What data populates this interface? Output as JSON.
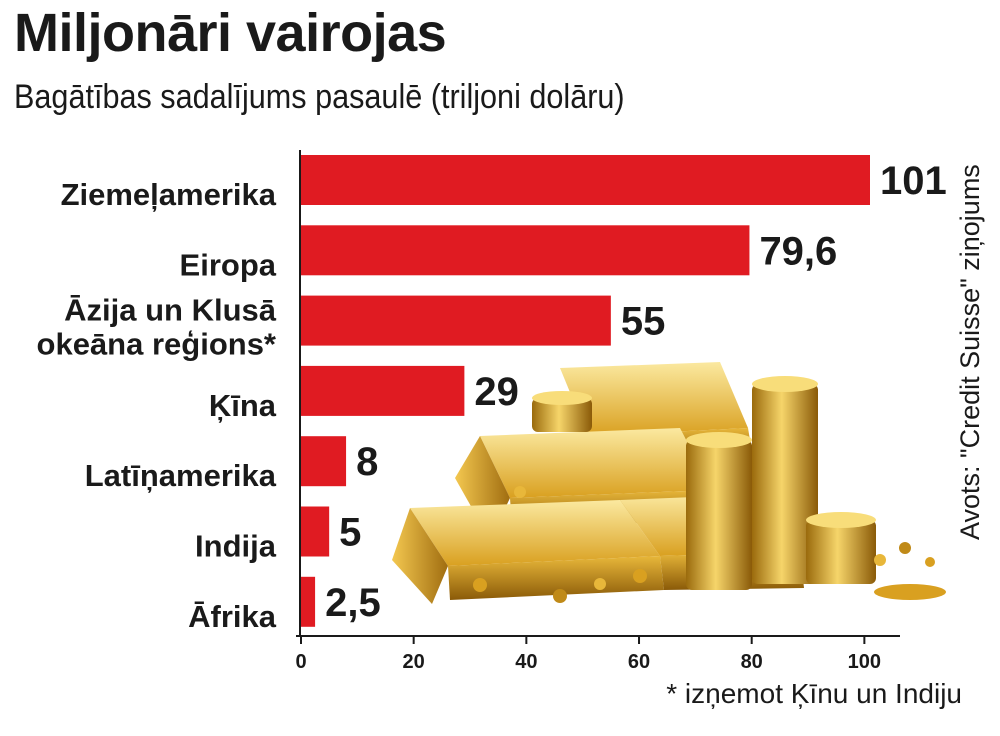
{
  "chart_data": {
    "type": "bar",
    "orientation": "horizontal",
    "title": "Miljonāri vairojas",
    "subtitle": "Bagātības sadalījums pasaulē (triljoni dolāru)",
    "categories": [
      [
        "Ziemeļamerika"
      ],
      [
        "Eiropa"
      ],
      [
        "Āzija un Klusā",
        "okeāna reģions*"
      ],
      [
        "Ķīna"
      ],
      [
        "Latīņamerika"
      ],
      [
        "Indija"
      ],
      [
        "Āfrika"
      ]
    ],
    "values": [
      101,
      79.6,
      55,
      29,
      8,
      5,
      2.5
    ],
    "value_labels": [
      "101",
      "79,6",
      "55",
      "29",
      "8",
      "5",
      "2,5"
    ],
    "xlim": [
      0,
      107
    ],
    "x_ticks": [
      0,
      20,
      40,
      60,
      80,
      100
    ],
    "x_tick_labels": [
      "0",
      "20",
      "40",
      "60",
      "80",
      "100"
    ],
    "bar_color": "#e01b22",
    "grid": false,
    "source": "Avots: \"Credit Suisse\" ziņojums",
    "footnote": "* izņemot Ķīnu un Indiju"
  },
  "image": {
    "description_icon": "gold-bars-and-coins-icon",
    "colors": {
      "gold_light": "#f7d76a",
      "gold_mid": "#d9a020",
      "gold_dark": "#8a5a08"
    }
  }
}
